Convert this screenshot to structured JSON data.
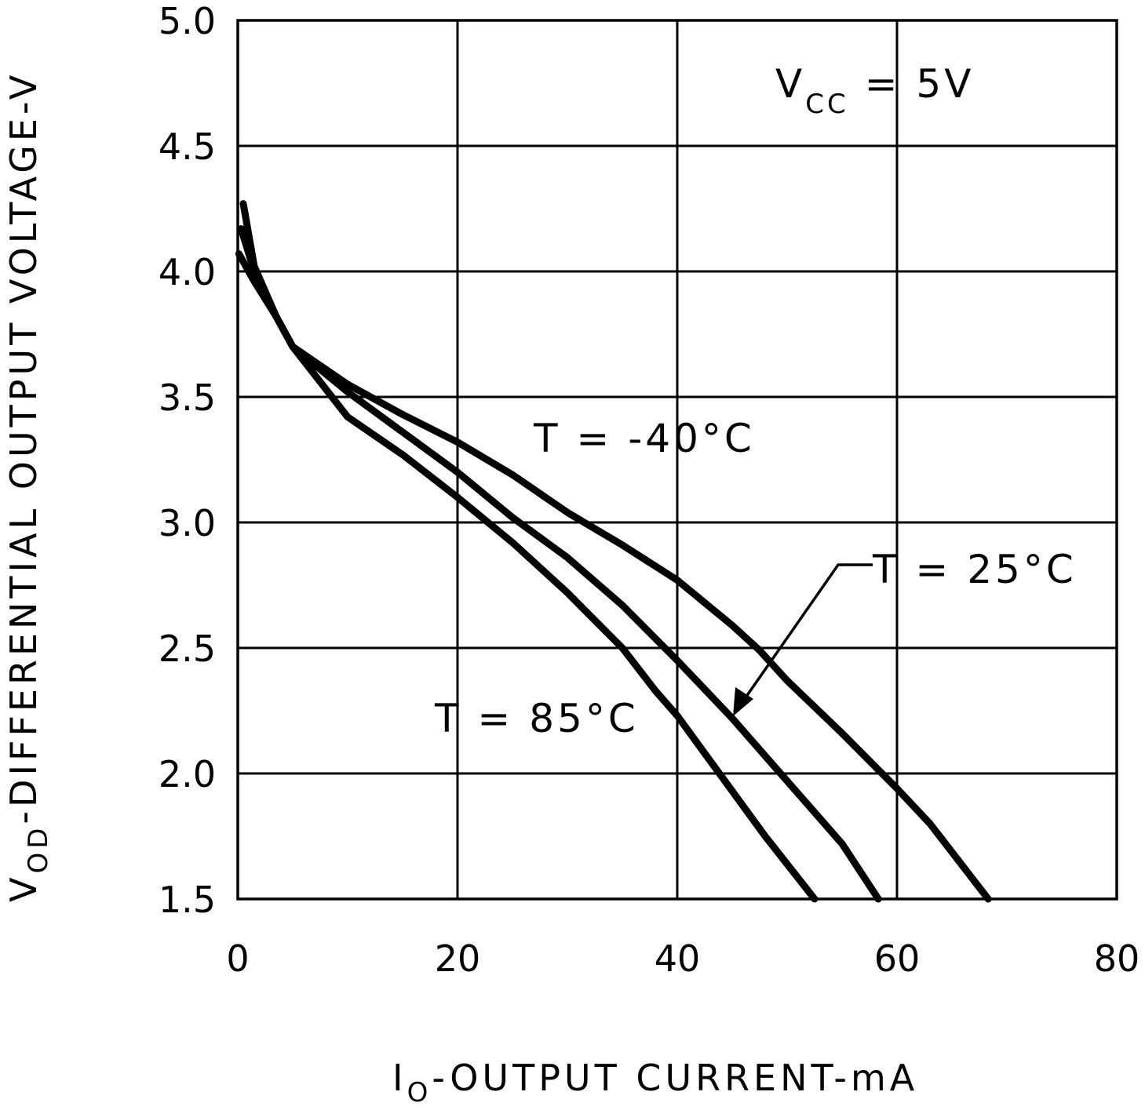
{
  "chart_data": {
    "type": "line",
    "title": "",
    "xlabel": {
      "main": "I",
      "sub": "O",
      "rest": "-OUTPUT CURRENT-mA"
    },
    "ylabel": {
      "main": "V",
      "sub": "OD",
      "rest": "-DIFFERENTIAL OUTPUT VOLTAGE-V"
    },
    "xlim": [
      0,
      80
    ],
    "ylim": [
      1.5,
      5.0
    ],
    "x_ticks": [
      0,
      20,
      40,
      60,
      80
    ],
    "x_tick_labels": [
      "0",
      "20",
      "40",
      "60",
      "80"
    ],
    "y_ticks": [
      1.5,
      2.0,
      2.5,
      3.0,
      3.5,
      4.0,
      4.5,
      5.0
    ],
    "y_tick_labels": [
      "1.5",
      "2.0",
      "2.5",
      "3.0",
      "3.5",
      "4.0",
      "4.5",
      "5.0"
    ],
    "grid": true,
    "condition": {
      "main": "V",
      "sub": "CC",
      "rest": " = 5V"
    },
    "series": [
      {
        "name": "T = -40°C",
        "x": [
          0.5,
          1.5,
          3.5,
          5,
          10,
          15,
          20,
          25,
          30,
          35,
          40,
          45,
          47.5,
          50,
          55,
          60,
          63,
          68.3
        ],
        "y": [
          4.27,
          4.02,
          3.82,
          3.7,
          3.55,
          3.43,
          3.32,
          3.19,
          3.04,
          2.91,
          2.77,
          2.59,
          2.49,
          2.37,
          2.16,
          1.94,
          1.8,
          1.5
        ]
      },
      {
        "name": "T = 25°C",
        "x": [
          0.3,
          1.5,
          3.5,
          5,
          10,
          15,
          20,
          25,
          30,
          35,
          40,
          45,
          50,
          55,
          58.3
        ],
        "y": [
          4.17,
          4.0,
          3.82,
          3.7,
          3.52,
          3.36,
          3.2,
          3.02,
          2.86,
          2.67,
          2.45,
          2.22,
          1.97,
          1.72,
          1.5
        ]
      },
      {
        "name": "T = 85°C",
        "x": [
          0.1,
          1.5,
          3.5,
          5,
          10,
          15,
          20,
          25,
          30,
          35,
          38,
          40,
          45,
          48,
          52.5
        ],
        "y": [
          4.07,
          3.96,
          3.82,
          3.7,
          3.42,
          3.27,
          3.1,
          2.92,
          2.72,
          2.5,
          2.33,
          2.23,
          1.93,
          1.75,
          1.5
        ]
      }
    ],
    "annotations": [
      {
        "series": "T = -40°C",
        "text": "T = -40°C"
      },
      {
        "series": "T = 25°C",
        "text": "T = 25°C"
      },
      {
        "series": "T = 85°C",
        "text": "T = 85°C"
      }
    ]
  }
}
